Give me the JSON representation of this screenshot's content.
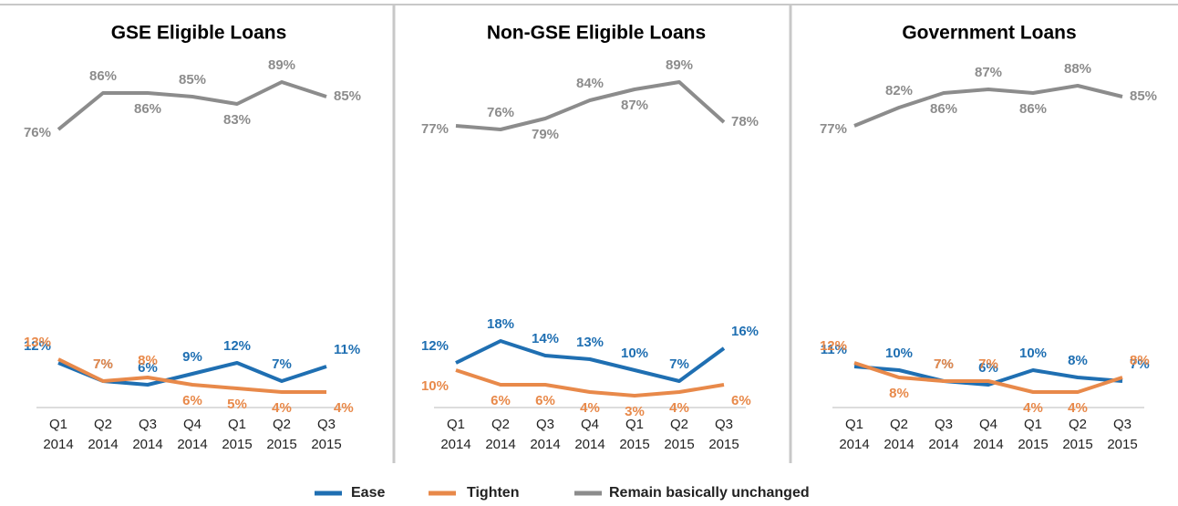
{
  "chart_data": [
    {
      "type": "line",
      "title": "GSE Eligible Loans",
      "categories": [
        "Q1 2014",
        "Q2 2014",
        "Q3 2014",
        "Q4 2014",
        "Q1 2015",
        "Q2 2015",
        "Q3 2015"
      ],
      "ylim": [
        0,
        100
      ],
      "series": [
        {
          "name": "Ease",
          "color": "#1f6fb2",
          "values": [
            12,
            7,
            6,
            9,
            12,
            7,
            11
          ],
          "value_labels": [
            "12%",
            "7%",
            "6%",
            "9%",
            "12%",
            "7%",
            "11%"
          ]
        },
        {
          "name": "Tighten",
          "color": "#e8894a",
          "values": [
            13,
            7,
            8,
            6,
            5,
            4,
            4
          ],
          "value_labels": [
            "13%",
            "7%",
            "8%",
            "6%",
            "5%",
            "4%",
            "4%"
          ]
        },
        {
          "name": "Remain basically unchanged",
          "color": "#8c8c8c",
          "values": [
            76,
            86,
            86,
            85,
            83,
            89,
            85
          ],
          "value_labels": [
            "76%",
            "86%",
            "86%",
            "85%",
            "83%",
            "89%",
            "85%"
          ]
        }
      ]
    },
    {
      "type": "line",
      "title": "Non-GSE Eligible Loans",
      "categories": [
        "Q1 2014",
        "Q2 2014",
        "Q3 2014",
        "Q4 2014",
        "Q1 2015",
        "Q2 2015",
        "Q3 2015"
      ],
      "ylim": [
        0,
        100
      ],
      "series": [
        {
          "name": "Ease",
          "color": "#1f6fb2",
          "values": [
            12,
            18,
            14,
            13,
            10,
            7,
            16
          ],
          "value_labels": [
            "12%",
            "18%",
            "14%",
            "13%",
            "10%",
            "7%",
            "16%"
          ]
        },
        {
          "name": "Tighten",
          "color": "#e8894a",
          "values": [
            10,
            6,
            6,
            4,
            3,
            4,
            6
          ],
          "value_labels": [
            "10%",
            "6%",
            "6%",
            "4%",
            "3%",
            "4%",
            "6%"
          ]
        },
        {
          "name": "Remain basically unchanged",
          "color": "#8c8c8c",
          "values": [
            77,
            76,
            79,
            84,
            87,
            89,
            78
          ],
          "value_labels": [
            "77%",
            "76%",
            "79%",
            "84%",
            "87%",
            "89%",
            "78%"
          ]
        }
      ]
    },
    {
      "type": "line",
      "title": "Government Loans",
      "categories": [
        "Q1 2014",
        "Q2 2014",
        "Q3 2014",
        "Q4 2014",
        "Q1 2015",
        "Q2 2015",
        "Q3 2015"
      ],
      "ylim": [
        0,
        100
      ],
      "series": [
        {
          "name": "Ease",
          "color": "#1f6fb2",
          "values": [
            11,
            10,
            7,
            6,
            10,
            8,
            7
          ],
          "value_labels": [
            "11%",
            "10%",
            "7%",
            "6%",
            "10%",
            "8%",
            "7%"
          ]
        },
        {
          "name": "Tighten",
          "color": "#e8894a",
          "values": [
            12,
            8,
            7,
            7,
            4,
            4,
            8
          ],
          "value_labels": [
            "12%",
            "8%",
            "7%",
            "7%",
            "4%",
            "4%",
            "8%"
          ]
        },
        {
          "name": "Remain basically unchanged",
          "color": "#8c8c8c",
          "values": [
            77,
            82,
            86,
            87,
            86,
            88,
            85
          ],
          "value_labels": [
            "77%",
            "82%",
            "86%",
            "87%",
            "86%",
            "88%",
            "85%"
          ]
        }
      ]
    }
  ]
}
